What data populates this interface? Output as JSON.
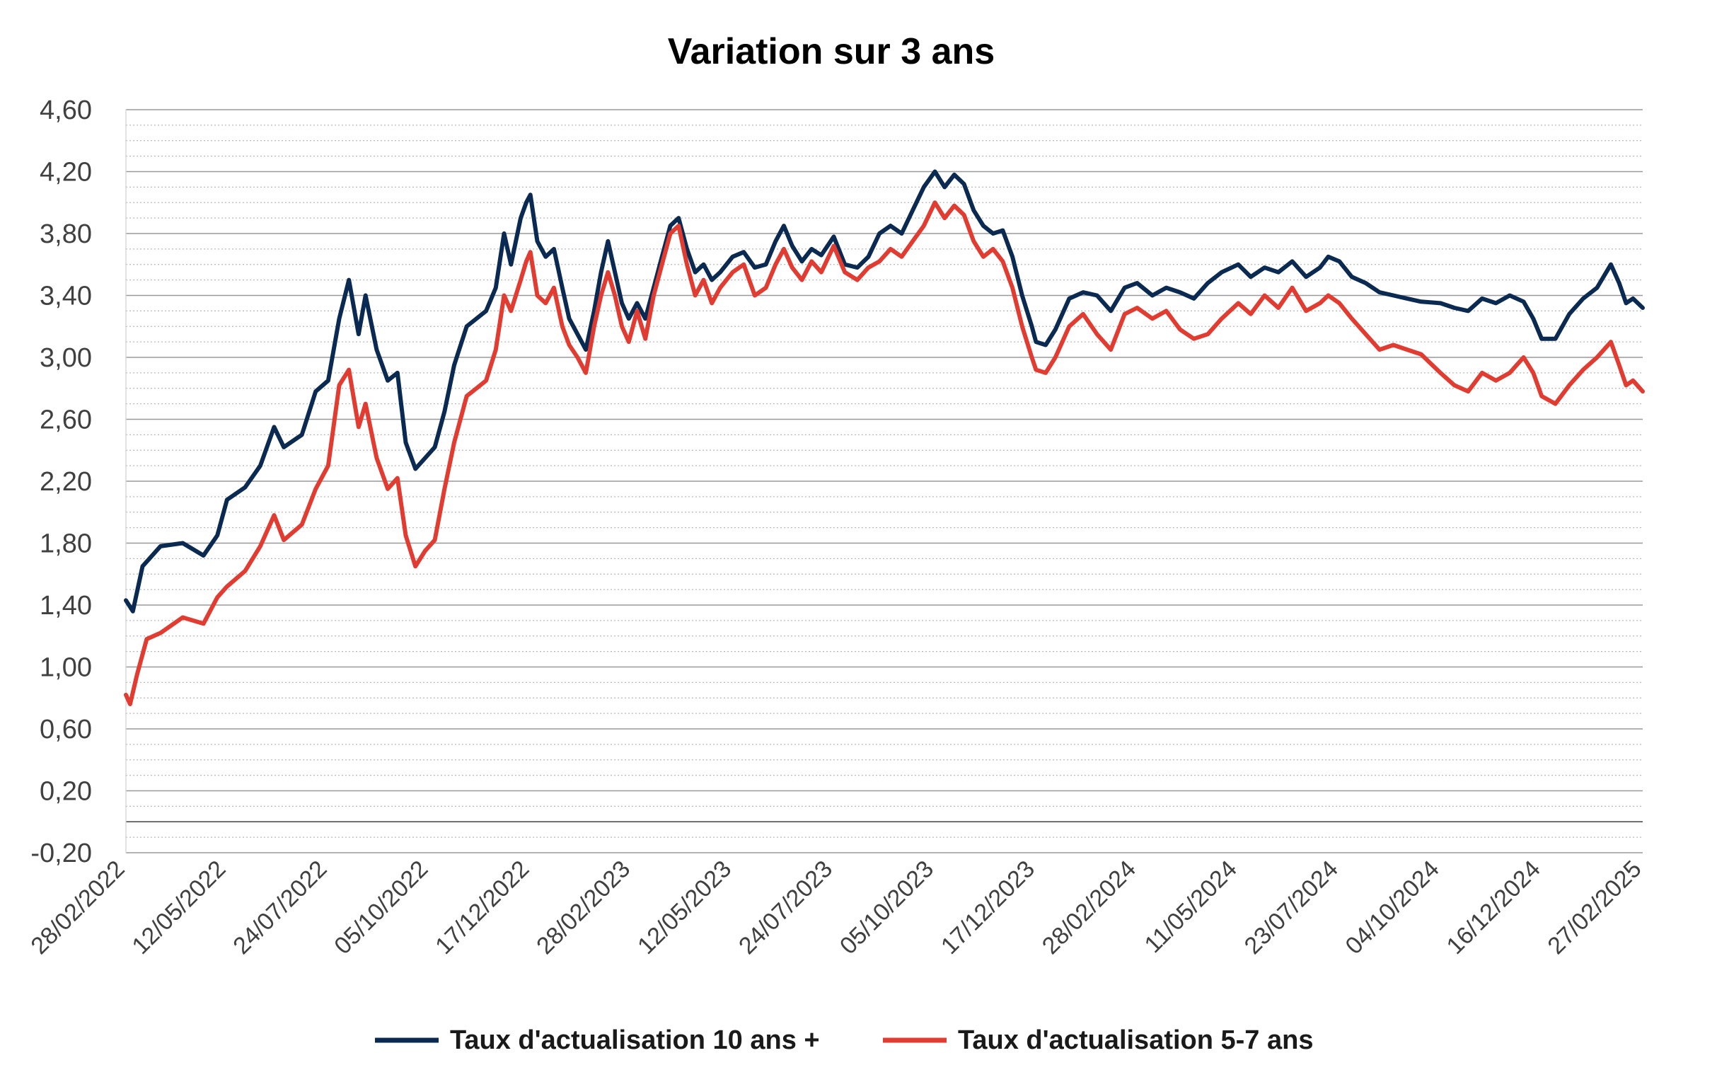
{
  "chart_data": {
    "type": "line",
    "title": "Variation sur 3 ans",
    "xlabel": "",
    "ylabel": "",
    "ylim": [
      -0.2,
      4.6
    ],
    "y_ticks": [
      "4,60",
      "4,20",
      "3,80",
      "3,40",
      "3,00",
      "2,60",
      "2,20",
      "1,80",
      "1,40",
      "1,00",
      "0,60",
      "0,20",
      "-0,20"
    ],
    "x_ticks": [
      "28/02/2022",
      "12/05/2022",
      "24/07/2022",
      "05/10/2022",
      "17/12/2022",
      "28/02/2023",
      "12/05/2023",
      "24/07/2023",
      "05/10/2023",
      "17/12/2023",
      "28/02/2024",
      "11/05/2024",
      "23/07/2024",
      "04/10/2024",
      "16/12/2024",
      "27/02/2025"
    ],
    "grid": true,
    "legend_position": "bottom",
    "series": [
      {
        "name": "Taux d'actualisation 10 ans +",
        "color": "#0b2a52",
        "points": [
          [
            "28/02/2022",
            1.43
          ],
          [
            "05/03/2022",
            1.36
          ],
          [
            "12/03/2022",
            1.65
          ],
          [
            "25/03/2022",
            1.78
          ],
          [
            "10/04/2022",
            1.8
          ],
          [
            "25/04/2022",
            1.72
          ],
          [
            "05/05/2022",
            1.85
          ],
          [
            "12/05/2022",
            2.08
          ],
          [
            "25/05/2022",
            2.16
          ],
          [
            "05/06/2022",
            2.3
          ],
          [
            "15/06/2022",
            2.55
          ],
          [
            "22/06/2022",
            2.42
          ],
          [
            "05/07/2022",
            2.5
          ],
          [
            "15/07/2022",
            2.78
          ],
          [
            "24/07/2022",
            2.85
          ],
          [
            "01/08/2022",
            3.25
          ],
          [
            "08/08/2022",
            3.5
          ],
          [
            "15/08/2022",
            3.15
          ],
          [
            "20/08/2022",
            3.4
          ],
          [
            "28/08/2022",
            3.05
          ],
          [
            "05/09/2022",
            2.85
          ],
          [
            "12/09/2022",
            2.9
          ],
          [
            "18/09/2022",
            2.45
          ],
          [
            "25/09/2022",
            2.28
          ],
          [
            "02/10/2022",
            2.35
          ],
          [
            "09/10/2022",
            2.42
          ],
          [
            "16/10/2022",
            2.65
          ],
          [
            "23/10/2022",
            2.95
          ],
          [
            "01/11/2022",
            3.2
          ],
          [
            "08/11/2022",
            3.25
          ],
          [
            "15/11/2022",
            3.3
          ],
          [
            "22/11/2022",
            3.45
          ],
          [
            "28/11/2022",
            3.8
          ],
          [
            "03/12/2022",
            3.6
          ],
          [
            "10/12/2022",
            3.9
          ],
          [
            "14/12/2022",
            4.0
          ],
          [
            "17/12/2022",
            4.05
          ],
          [
            "22/12/2022",
            3.75
          ],
          [
            "28/12/2022",
            3.65
          ],
          [
            "03/01/2023",
            3.7
          ],
          [
            "09/01/2023",
            3.45
          ],
          [
            "14/01/2023",
            3.25
          ],
          [
            "20/01/2023",
            3.15
          ],
          [
            "26/01/2023",
            3.05
          ],
          [
            "01/02/2023",
            3.3
          ],
          [
            "06/02/2023",
            3.55
          ],
          [
            "11/02/2023",
            3.75
          ],
          [
            "16/02/2023",
            3.55
          ],
          [
            "21/02/2023",
            3.35
          ],
          [
            "26/02/2023",
            3.25
          ],
          [
            "04/03/2023",
            3.35
          ],
          [
            "10/03/2023",
            3.25
          ],
          [
            "16/03/2023",
            3.45
          ],
          [
            "22/03/2023",
            3.65
          ],
          [
            "28/03/2023",
            3.85
          ],
          [
            "03/04/2023",
            3.9
          ],
          [
            "09/04/2023",
            3.7
          ],
          [
            "15/04/2023",
            3.55
          ],
          [
            "21/04/2023",
            3.6
          ],
          [
            "27/04/2023",
            3.5
          ],
          [
            "03/05/2023",
            3.55
          ],
          [
            "12/05/2023",
            3.65
          ],
          [
            "20/05/2023",
            3.68
          ],
          [
            "28/05/2023",
            3.58
          ],
          [
            "05/06/2023",
            3.6
          ],
          [
            "12/06/2023",
            3.75
          ],
          [
            "18/06/2023",
            3.85
          ],
          [
            "24/06/2023",
            3.72
          ],
          [
            "01/07/2023",
            3.62
          ],
          [
            "08/07/2023",
            3.7
          ],
          [
            "15/07/2023",
            3.66
          ],
          [
            "24/07/2023",
            3.78
          ],
          [
            "01/08/2023",
            3.6
          ],
          [
            "10/08/2023",
            3.58
          ],
          [
            "18/08/2023",
            3.65
          ],
          [
            "26/08/2023",
            3.8
          ],
          [
            "03/09/2023",
            3.85
          ],
          [
            "11/09/2023",
            3.8
          ],
          [
            "19/09/2023",
            3.95
          ],
          [
            "27/09/2023",
            4.1
          ],
          [
            "05/10/2023",
            4.2
          ],
          [
            "12/10/2023",
            4.1
          ],
          [
            "19/10/2023",
            4.18
          ],
          [
            "26/10/2023",
            4.12
          ],
          [
            "02/11/2023",
            3.95
          ],
          [
            "09/11/2023",
            3.85
          ],
          [
            "16/11/2023",
            3.8
          ],
          [
            "23/11/2023",
            3.82
          ],
          [
            "30/11/2023",
            3.65
          ],
          [
            "07/12/2023",
            3.4
          ],
          [
            "14/12/2023",
            3.2
          ],
          [
            "17/12/2023",
            3.1
          ],
          [
            "24/12/2023",
            3.08
          ],
          [
            "31/12/2023",
            3.18
          ],
          [
            "10/01/2024",
            3.38
          ],
          [
            "20/01/2024",
            3.42
          ],
          [
            "30/01/2024",
            3.4
          ],
          [
            "09/02/2024",
            3.3
          ],
          [
            "19/02/2024",
            3.45
          ],
          [
            "28/02/2024",
            3.48
          ],
          [
            "10/03/2024",
            3.4
          ],
          [
            "20/03/2024",
            3.45
          ],
          [
            "30/03/2024",
            3.42
          ],
          [
            "09/04/2024",
            3.38
          ],
          [
            "19/04/2024",
            3.48
          ],
          [
            "29/04/2024",
            3.55
          ],
          [
            "11/05/2024",
            3.6
          ],
          [
            "20/05/2024",
            3.52
          ],
          [
            "30/05/2024",
            3.58
          ],
          [
            "09/06/2024",
            3.55
          ],
          [
            "19/06/2024",
            3.62
          ],
          [
            "29/06/2024",
            3.52
          ],
          [
            "09/07/2024",
            3.58
          ],
          [
            "15/07/2024",
            3.65
          ],
          [
            "23/07/2024",
            3.62
          ],
          [
            "01/08/2024",
            3.52
          ],
          [
            "11/08/2024",
            3.48
          ],
          [
            "21/08/2024",
            3.42
          ],
          [
            "31/08/2024",
            3.4
          ],
          [
            "10/09/2024",
            3.38
          ],
          [
            "20/09/2024",
            3.36
          ],
          [
            "04/10/2024",
            3.35
          ],
          [
            "14/10/2024",
            3.32
          ],
          [
            "24/10/2024",
            3.3
          ],
          [
            "03/11/2024",
            3.38
          ],
          [
            "13/11/2024",
            3.35
          ],
          [
            "23/11/2024",
            3.4
          ],
          [
            "03/12/2024",
            3.36
          ],
          [
            "10/12/2024",
            3.25
          ],
          [
            "16/12/2024",
            3.12
          ],
          [
            "26/12/2024",
            3.12
          ],
          [
            "05/01/2025",
            3.28
          ],
          [
            "15/01/2025",
            3.38
          ],
          [
            "25/01/2025",
            3.45
          ],
          [
            "04/02/2025",
            3.6
          ],
          [
            "10/02/2025",
            3.48
          ],
          [
            "15/02/2025",
            3.35
          ],
          [
            "20/02/2025",
            3.38
          ],
          [
            "27/02/2025",
            3.32
          ]
        ]
      },
      {
        "name": "Taux d'actualisation 5-7 ans",
        "color": "#e03c31",
        "points": [
          [
            "28/02/2022",
            0.82
          ],
          [
            "03/03/2022",
            0.76
          ],
          [
            "08/03/2022",
            0.95
          ],
          [
            "15/03/2022",
            1.18
          ],
          [
            "25/03/2022",
            1.22
          ],
          [
            "10/04/2022",
            1.32
          ],
          [
            "25/04/2022",
            1.28
          ],
          [
            "05/05/2022",
            1.45
          ],
          [
            "12/05/2022",
            1.52
          ],
          [
            "25/05/2022",
            1.62
          ],
          [
            "05/06/2022",
            1.78
          ],
          [
            "15/06/2022",
            1.98
          ],
          [
            "22/06/2022",
            1.82
          ],
          [
            "05/07/2022",
            1.92
          ],
          [
            "15/07/2022",
            2.15
          ],
          [
            "24/07/2022",
            2.3
          ],
          [
            "01/08/2022",
            2.82
          ],
          [
            "08/08/2022",
            2.92
          ],
          [
            "15/08/2022",
            2.55
          ],
          [
            "20/08/2022",
            2.7
          ],
          [
            "28/08/2022",
            2.35
          ],
          [
            "05/09/2022",
            2.15
          ],
          [
            "12/09/2022",
            2.22
          ],
          [
            "18/09/2022",
            1.85
          ],
          [
            "25/09/2022",
            1.65
          ],
          [
            "02/10/2022",
            1.75
          ],
          [
            "09/10/2022",
            1.82
          ],
          [
            "16/10/2022",
            2.15
          ],
          [
            "23/10/2022",
            2.45
          ],
          [
            "01/11/2022",
            2.75
          ],
          [
            "08/11/2022",
            2.8
          ],
          [
            "15/11/2022",
            2.85
          ],
          [
            "22/11/2022",
            3.05
          ],
          [
            "28/11/2022",
            3.4
          ],
          [
            "03/12/2022",
            3.3
          ],
          [
            "10/12/2022",
            3.5
          ],
          [
            "14/12/2022",
            3.62
          ],
          [
            "17/12/2022",
            3.68
          ],
          [
            "22/12/2022",
            3.4
          ],
          [
            "28/12/2022",
            3.35
          ],
          [
            "03/01/2023",
            3.45
          ],
          [
            "09/01/2023",
            3.2
          ],
          [
            "14/01/2023",
            3.08
          ],
          [
            "20/01/2023",
            3.0
          ],
          [
            "26/01/2023",
            2.9
          ],
          [
            "01/02/2023",
            3.2
          ],
          [
            "06/02/2023",
            3.4
          ],
          [
            "11/02/2023",
            3.55
          ],
          [
            "16/02/2023",
            3.4
          ],
          [
            "21/02/2023",
            3.2
          ],
          [
            "26/02/2023",
            3.1
          ],
          [
            "04/03/2023",
            3.3
          ],
          [
            "10/03/2023",
            3.12
          ],
          [
            "16/03/2023",
            3.4
          ],
          [
            "22/03/2023",
            3.6
          ],
          [
            "28/03/2023",
            3.8
          ],
          [
            "03/04/2023",
            3.85
          ],
          [
            "09/04/2023",
            3.6
          ],
          [
            "15/04/2023",
            3.4
          ],
          [
            "21/04/2023",
            3.5
          ],
          [
            "27/04/2023",
            3.35
          ],
          [
            "03/05/2023",
            3.45
          ],
          [
            "12/05/2023",
            3.55
          ],
          [
            "20/05/2023",
            3.6
          ],
          [
            "28/05/2023",
            3.4
          ],
          [
            "05/06/2023",
            3.45
          ],
          [
            "12/06/2023",
            3.6
          ],
          [
            "18/06/2023",
            3.7
          ],
          [
            "24/06/2023",
            3.58
          ],
          [
            "01/07/2023",
            3.5
          ],
          [
            "08/07/2023",
            3.62
          ],
          [
            "15/07/2023",
            3.55
          ],
          [
            "24/07/2023",
            3.72
          ],
          [
            "01/08/2023",
            3.55
          ],
          [
            "10/08/2023",
            3.5
          ],
          [
            "18/08/2023",
            3.58
          ],
          [
            "26/08/2023",
            3.62
          ],
          [
            "03/09/2023",
            3.7
          ],
          [
            "11/09/2023",
            3.65
          ],
          [
            "19/09/2023",
            3.75
          ],
          [
            "27/09/2023",
            3.85
          ],
          [
            "05/10/2023",
            4.0
          ],
          [
            "12/10/2023",
            3.9
          ],
          [
            "19/10/2023",
            3.98
          ],
          [
            "26/10/2023",
            3.92
          ],
          [
            "02/11/2023",
            3.75
          ],
          [
            "09/11/2023",
            3.65
          ],
          [
            "16/11/2023",
            3.7
          ],
          [
            "23/11/2023",
            3.62
          ],
          [
            "30/11/2023",
            3.45
          ],
          [
            "07/12/2023",
            3.2
          ],
          [
            "14/12/2023",
            3.0
          ],
          [
            "17/12/2023",
            2.92
          ],
          [
            "24/12/2023",
            2.9
          ],
          [
            "31/12/2023",
            3.0
          ],
          [
            "10/01/2024",
            3.2
          ],
          [
            "20/01/2024",
            3.28
          ],
          [
            "30/01/2024",
            3.15
          ],
          [
            "09/02/2024",
            3.05
          ],
          [
            "19/02/2024",
            3.28
          ],
          [
            "28/02/2024",
            3.32
          ],
          [
            "10/03/2024",
            3.25
          ],
          [
            "20/03/2024",
            3.3
          ],
          [
            "30/03/2024",
            3.18
          ],
          [
            "09/04/2024",
            3.12
          ],
          [
            "19/04/2024",
            3.15
          ],
          [
            "29/04/2024",
            3.25
          ],
          [
            "11/05/2024",
            3.35
          ],
          [
            "20/05/2024",
            3.28
          ],
          [
            "30/05/2024",
            3.4
          ],
          [
            "09/06/2024",
            3.32
          ],
          [
            "19/06/2024",
            3.45
          ],
          [
            "29/06/2024",
            3.3
          ],
          [
            "09/07/2024",
            3.35
          ],
          [
            "15/07/2024",
            3.4
          ],
          [
            "23/07/2024",
            3.35
          ],
          [
            "01/08/2024",
            3.25
          ],
          [
            "11/08/2024",
            3.15
          ],
          [
            "21/08/2024",
            3.05
          ],
          [
            "31/08/2024",
            3.08
          ],
          [
            "10/09/2024",
            3.05
          ],
          [
            "20/09/2024",
            3.02
          ],
          [
            "04/10/2024",
            2.9
          ],
          [
            "14/10/2024",
            2.82
          ],
          [
            "24/10/2024",
            2.78
          ],
          [
            "03/11/2024",
            2.9
          ],
          [
            "13/11/2024",
            2.85
          ],
          [
            "23/11/2024",
            2.9
          ],
          [
            "03/12/2024",
            3.0
          ],
          [
            "10/12/2024",
            2.9
          ],
          [
            "16/12/2024",
            2.75
          ],
          [
            "26/12/2024",
            2.7
          ],
          [
            "05/01/2025",
            2.82
          ],
          [
            "15/01/2025",
            2.92
          ],
          [
            "25/01/2025",
            3.0
          ],
          [
            "04/02/2025",
            3.1
          ],
          [
            "10/02/2025",
            2.95
          ],
          [
            "15/02/2025",
            2.82
          ],
          [
            "20/02/2025",
            2.85
          ],
          [
            "27/02/2025",
            2.78
          ]
        ]
      }
    ]
  }
}
